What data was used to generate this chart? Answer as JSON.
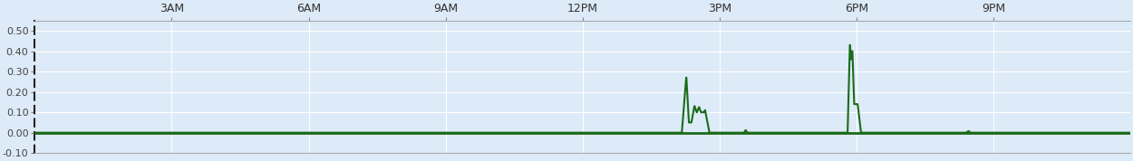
{
  "xlim_hours": [
    0,
    24
  ],
  "ylim": [
    -0.1,
    0.55
  ],
  "yticks": [
    -0.1,
    0.0,
    0.1,
    0.2,
    0.3,
    0.4,
    0.5
  ],
  "xtick_positions": [
    3,
    6,
    9,
    12,
    15,
    18,
    21
  ],
  "xtick_labels": [
    "3AM",
    "6AM",
    "9AM",
    "12PM",
    "3PM",
    "6PM",
    "9PM"
  ],
  "line_color": "#1a6b1a",
  "bg_color": "#ddeaf7",
  "grid_color": "#ffffff",
  "figsize": [
    12.5,
    1.78
  ],
  "dpi": 100
}
